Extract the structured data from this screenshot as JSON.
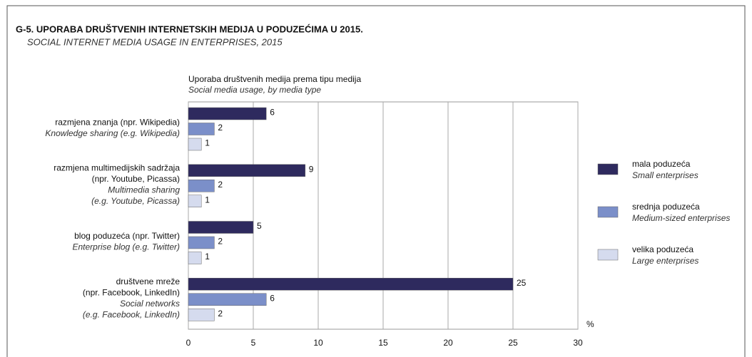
{
  "chart_data": {
    "type": "bar",
    "orientation": "horizontal",
    "title": "G-5.  UPORABA DRUŠTVENIH INTERNETSKIH MEDIJA U PODUZEĆIMA U 2015.",
    "subtitle": "SOCIAL INTERNET MEDIA USAGE IN ENTERPRISES, 2015",
    "chart_title": "Uporaba društvenih medija prema tipu medija",
    "chart_subtitle": "Social media usage, by media type",
    "x_label": "%",
    "categories": [
      {
        "hr": [
          "razmjena znanja (npr. Wikipedia)"
        ],
        "en": [
          "Knowledge sharing (e.g. Wikipedia)"
        ]
      },
      {
        "hr": [
          "razmjena multimedijskih sadržaja",
          "(npr. Youtube, Picassa)"
        ],
        "en": [
          "Multimedia sharing",
          "(e.g. Youtube, Picassa)"
        ]
      },
      {
        "hr": [
          "blog poduzeća (npr. Twitter)"
        ],
        "en": [
          "Enterprise blog (e.g. Twitter)"
        ]
      },
      {
        "hr": [
          "društvene mreže",
          "(npr. Facebook, LinkedIn)"
        ],
        "en": [
          "Social networks",
          "(e.g. Facebook, LinkedIn)"
        ]
      }
    ],
    "series": [
      {
        "name": "mala poduzeća",
        "name_en": "Small enterprises",
        "color": "#2e2a5e",
        "values": [
          6,
          9,
          5,
          25
        ]
      },
      {
        "name": "srednja poduzeća",
        "name_en": "Medium-sized enterprises",
        "color": "#7b8fc9",
        "values": [
          2,
          2,
          2,
          6
        ]
      },
      {
        "name": "velika poduzeća",
        "name_en": "Large enterprises",
        "color": "#d5dbee",
        "values": [
          1,
          1,
          1,
          2
        ]
      }
    ],
    "xlim": [
      0,
      30
    ],
    "xticks": [
      0,
      5,
      10,
      15,
      20,
      25,
      30
    ],
    "grid": true
  }
}
